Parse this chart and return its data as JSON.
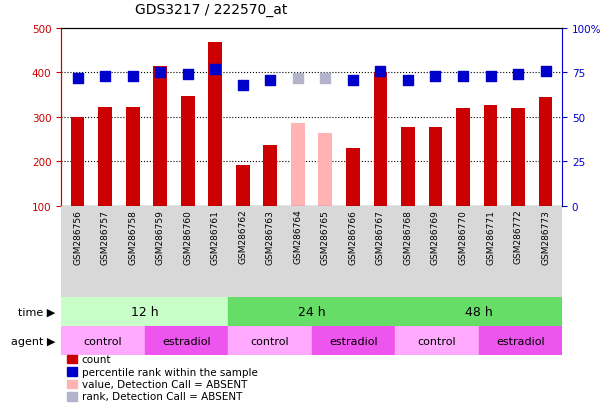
{
  "title": "GDS3217 / 222570_at",
  "samples": [
    "GSM286756",
    "GSM286757",
    "GSM286758",
    "GSM286759",
    "GSM286760",
    "GSM286761",
    "GSM286762",
    "GSM286763",
    "GSM286764",
    "GSM286765",
    "GSM286766",
    "GSM286767",
    "GSM286768",
    "GSM286769",
    "GSM286770",
    "GSM286771",
    "GSM286772",
    "GSM286773"
  ],
  "bar_values": [
    300,
    323,
    323,
    415,
    348,
    468,
    193,
    238,
    287,
    263,
    230,
    400,
    277,
    277,
    320,
    326,
    320,
    345
  ],
  "bar_absent": [
    false,
    false,
    false,
    false,
    false,
    false,
    false,
    false,
    true,
    true,
    false,
    false,
    false,
    false,
    false,
    false,
    false,
    false
  ],
  "percentile_values": [
    72,
    73,
    73,
    75,
    74,
    77,
    68,
    71,
    72,
    72,
    71,
    76,
    71,
    73,
    73,
    73,
    74,
    76
  ],
  "percentile_absent": [
    false,
    false,
    false,
    false,
    false,
    false,
    false,
    false,
    true,
    true,
    false,
    false,
    false,
    false,
    false,
    false,
    false,
    false
  ],
  "bar_color": "#cc0000",
  "bar_absent_color": "#ffb3b3",
  "dot_color": "#0000cc",
  "dot_absent_color": "#b3b3cc",
  "ylim_left": [
    100,
    500
  ],
  "ylim_right": [
    0,
    100
  ],
  "yticks_left": [
    100,
    200,
    300,
    400,
    500
  ],
  "yticks_right": [
    0,
    25,
    50,
    75,
    100
  ],
  "ytick_labels_right": [
    "0",
    "25",
    "50",
    "75",
    "100%"
  ],
  "grid_dotted_at": [
    200,
    300,
    400
  ],
  "background_color": "#ffffff",
  "plot_bg_color": "#ffffff",
  "axis_color_left": "#cc0000",
  "axis_color_right": "#0000cc",
  "time_groups": [
    {
      "label": "12 h",
      "start": 0,
      "end": 6,
      "color": "#c8ffc8"
    },
    {
      "label": "24 h",
      "start": 6,
      "end": 12,
      "color": "#66dd66"
    },
    {
      "label": "48 h",
      "start": 12,
      "end": 18,
      "color": "#66dd66"
    }
  ],
  "agent_groups": [
    {
      "label": "control",
      "start": 0,
      "end": 3,
      "color": "#ffaaff"
    },
    {
      "label": "estradiol",
      "start": 3,
      "end": 6,
      "color": "#ee55ee"
    },
    {
      "label": "control",
      "start": 6,
      "end": 9,
      "color": "#ffaaff"
    },
    {
      "label": "estradiol",
      "start": 9,
      "end": 12,
      "color": "#ee55ee"
    },
    {
      "label": "control",
      "start": 12,
      "end": 15,
      "color": "#ffaaff"
    },
    {
      "label": "estradiol",
      "start": 15,
      "end": 18,
      "color": "#ee55ee"
    }
  ],
  "legend_items": [
    {
      "label": "count",
      "color": "#cc0000"
    },
    {
      "label": "percentile rank within the sample",
      "color": "#0000cc"
    },
    {
      "label": "value, Detection Call = ABSENT",
      "color": "#ffb3b3"
    },
    {
      "label": "rank, Detection Call = ABSENT",
      "color": "#b3b3cc"
    }
  ],
  "bar_width": 0.5,
  "dot_size": 55
}
